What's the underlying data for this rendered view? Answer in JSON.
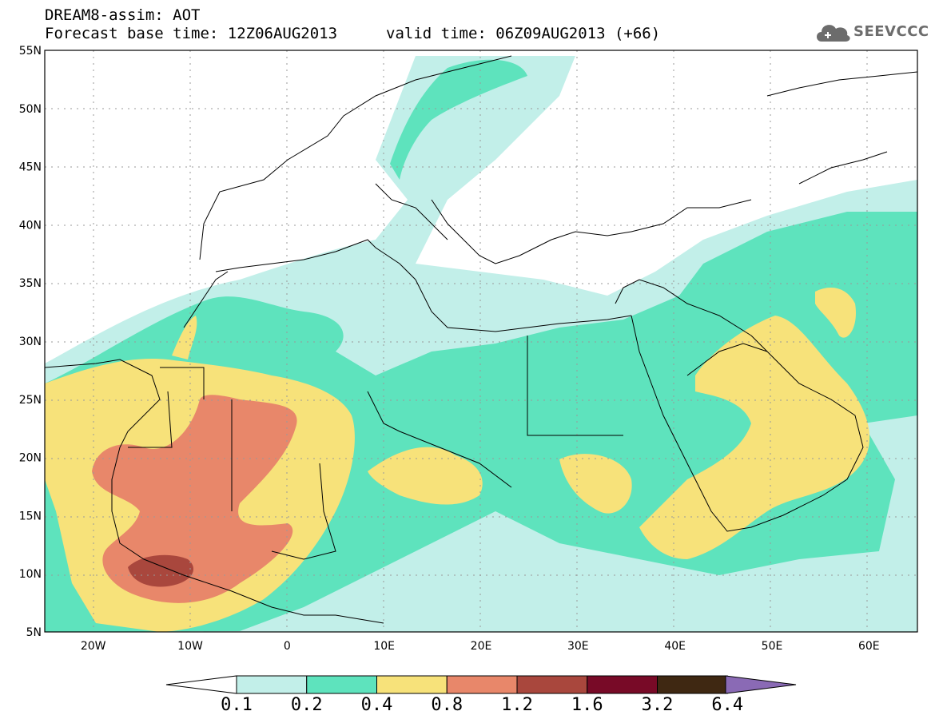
{
  "header": {
    "title_line1": "DREAM8-assim: AOT",
    "title_line2": "Forecast base time: 12Z06AUG2013",
    "valid_time": "valid time: 06Z09AUG2013 (+66)"
  },
  "logo": {
    "text": "SEEVCCC",
    "icon": "cloud-icon"
  },
  "map": {
    "variable": "AOT",
    "lon_range": [
      -25,
      65
    ],
    "lat_range": [
      5,
      55
    ],
    "lat_ticks": [
      "55N",
      "50N",
      "45N",
      "40N",
      "35N",
      "30N",
      "25N",
      "20N",
      "15N",
      "10N",
      "5N"
    ],
    "lon_ticks": [
      "20W",
      "10W",
      "0",
      "10E",
      "20E",
      "30E",
      "40E",
      "50E",
      "60E"
    ],
    "grid": "dotted"
  },
  "colorbar": {
    "labels": [
      "0.1",
      "0.2",
      "0.4",
      "0.8",
      "1.2",
      "1.6",
      "3.2",
      "6.4"
    ],
    "colors": [
      "#c2efe9",
      "#5ee3bd",
      "#f7e27a",
      "#e8876a",
      "#a9473d",
      "#780a27",
      "#3f2812",
      "#8a6ab5"
    ]
  }
}
